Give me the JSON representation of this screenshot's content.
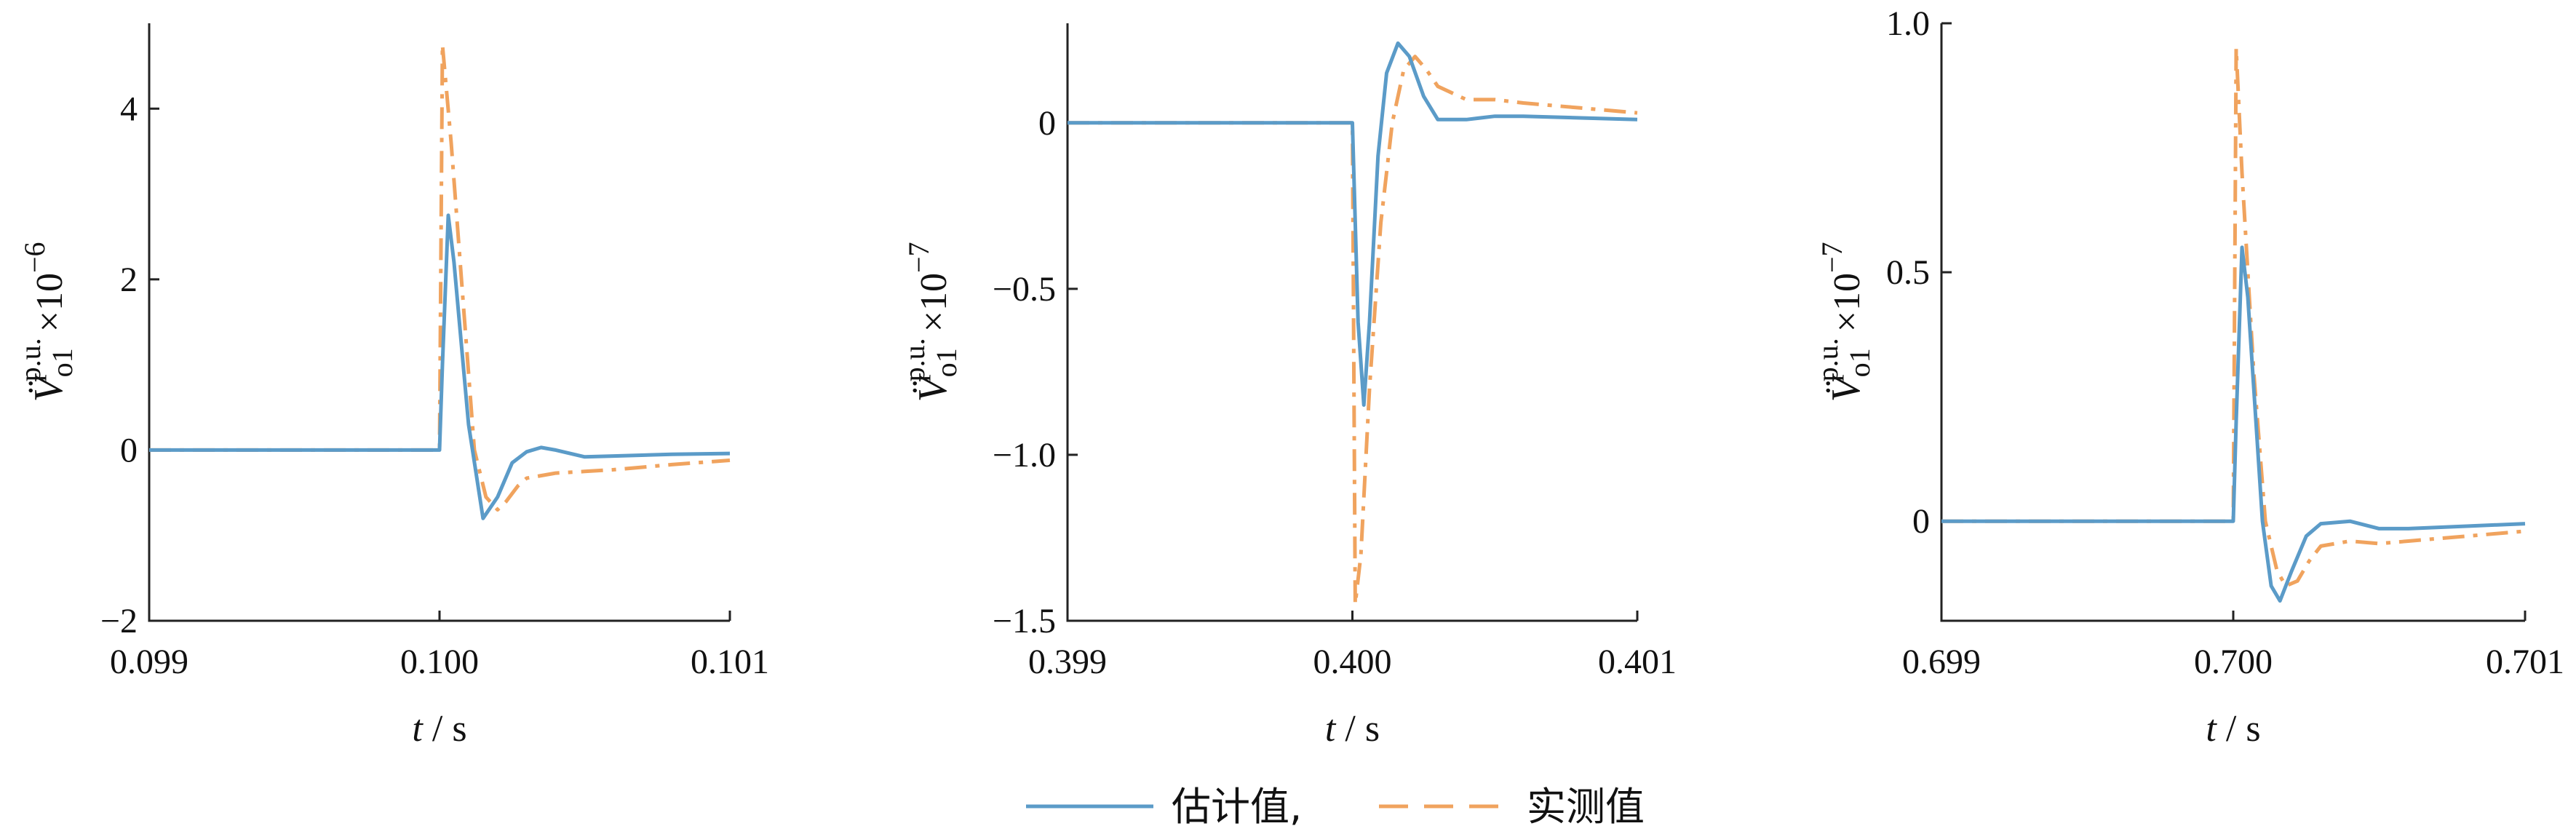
{
  "colors": {
    "estimated": "#5b9bc8",
    "measured": "#f0a35e"
  },
  "legend": {
    "estimated": "估计值,",
    "measured": "实测值"
  },
  "chart_data": [
    {
      "type": "line",
      "xlabel": "t / s",
      "ylabel": {
        "base": "V",
        "sub": "o1",
        "sup": "p.u.",
        "scale": "×10",
        "exp": "−6"
      },
      "xlim": [
        0.099,
        0.101
      ],
      "ylim": [
        -2,
        5
      ],
      "xticks": [
        0.099,
        0.1,
        0.101
      ],
      "xticklabels": [
        "0.099",
        "0.100",
        "0.101"
      ],
      "yticks": [
        -2,
        0,
        2,
        4
      ],
      "yticklabels": [
        "−2",
        "0",
        "2",
        "4"
      ],
      "series": [
        {
          "name": "估计值",
          "style": "solid",
          "x": [
            0.099,
            0.1,
            0.10001,
            0.10003,
            0.10005,
            0.1001,
            0.10015,
            0.1002,
            0.10025,
            0.1003,
            0.10035,
            0.1004,
            0.1005,
            0.1006,
            0.1008,
            0.101
          ],
          "y": [
            0,
            0,
            1.0,
            2.75,
            2.2,
            0.3,
            -0.8,
            -0.55,
            -0.15,
            -0.02,
            0.03,
            0.0,
            -0.08,
            -0.07,
            -0.05,
            -0.04
          ]
        },
        {
          "name": "实测值",
          "style": "dashdot",
          "x": [
            0.099,
            0.1,
            0.10001,
            0.10004,
            0.10008,
            0.10012,
            0.10016,
            0.1002,
            0.10023,
            0.10027,
            0.1003,
            0.1004,
            0.1005,
            0.1006,
            0.1008,
            0.101
          ],
          "y": [
            0,
            0,
            4.75,
            3.6,
            1.8,
            0.0,
            -0.55,
            -0.7,
            -0.6,
            -0.42,
            -0.33,
            -0.27,
            -0.25,
            -0.23,
            -0.17,
            -0.12
          ]
        }
      ]
    },
    {
      "type": "line",
      "xlabel": "t / s",
      "ylabel": {
        "base": "V",
        "sub": "o1",
        "sup": "p.u.",
        "scale": "×10",
        "exp": "−7"
      },
      "xlim": [
        0.399,
        0.401
      ],
      "ylim": [
        -1.5,
        0.3
      ],
      "xticks": [
        0.399,
        0.4,
        0.401
      ],
      "xticklabels": [
        "0.399",
        "0.400",
        "0.401"
      ],
      "yticks": [
        -1.5,
        -1.0,
        -0.5,
        0
      ],
      "yticklabels": [
        "−1.5",
        "−1.0",
        "−0.5",
        "0"
      ],
      "series": [
        {
          "name": "估计值",
          "style": "solid",
          "x": [
            0.399,
            0.4,
            0.40002,
            0.40004,
            0.40006,
            0.40009,
            0.40012,
            0.40016,
            0.4002,
            0.40025,
            0.4003,
            0.4004,
            0.4005,
            0.4006,
            0.4008,
            0.401
          ],
          "y": [
            0,
            0,
            -0.6,
            -0.85,
            -0.6,
            -0.1,
            0.15,
            0.24,
            0.2,
            0.08,
            0.01,
            0.01,
            0.02,
            0.02,
            0.015,
            0.01
          ]
        },
        {
          "name": "实测值",
          "style": "dashdot",
          "x": [
            0.399,
            0.4,
            0.40001,
            0.40003,
            0.40006,
            0.4001,
            0.40014,
            0.40018,
            0.40022,
            0.40026,
            0.4003,
            0.4004,
            0.4005,
            0.4006,
            0.4008,
            0.401
          ],
          "y": [
            0,
            0,
            -1.45,
            -1.3,
            -0.8,
            -0.3,
            0.0,
            0.16,
            0.2,
            0.16,
            0.11,
            0.07,
            0.07,
            0.06,
            0.045,
            0.03
          ]
        }
      ]
    },
    {
      "type": "line",
      "xlabel": "t / s",
      "ylabel": {
        "base": "V",
        "sub": "o1",
        "sup": "p.u.",
        "scale": "×10",
        "exp": "−7"
      },
      "xlim": [
        0.699,
        0.701
      ],
      "ylim": [
        -0.2,
        1.0
      ],
      "xticks": [
        0.699,
        0.7,
        0.701
      ],
      "xticklabels": [
        "0.699",
        "0.700",
        "0.701"
      ],
      "yticks": [
        0,
        0.5,
        1.0
      ],
      "yticklabels": [
        "0",
        "0.5",
        "1.0"
      ],
      "series": [
        {
          "name": "估计值",
          "style": "solid",
          "x": [
            0.699,
            0.7,
            0.70001,
            0.70003,
            0.70005,
            0.7001,
            0.70013,
            0.70016,
            0.7002,
            0.70025,
            0.7003,
            0.7004,
            0.7005,
            0.7006,
            0.7008,
            0.701
          ],
          "y": [
            0,
            0,
            0.2,
            0.55,
            0.45,
            0.0,
            -0.13,
            -0.16,
            -0.1,
            -0.03,
            -0.005,
            0.0,
            -0.015,
            -0.015,
            -0.01,
            -0.005
          ]
        },
        {
          "name": "实测值",
          "style": "dashdot",
          "x": [
            0.699,
            0.7,
            0.70001,
            0.70003,
            0.70007,
            0.70011,
            0.70015,
            0.70018,
            0.70022,
            0.70026,
            0.7003,
            0.7004,
            0.7005,
            0.7006,
            0.7008,
            0.701
          ],
          "y": [
            0,
            0,
            0.95,
            0.7,
            0.3,
            0.0,
            -0.1,
            -0.13,
            -0.12,
            -0.08,
            -0.05,
            -0.04,
            -0.045,
            -0.04,
            -0.03,
            -0.02
          ]
        }
      ]
    }
  ]
}
